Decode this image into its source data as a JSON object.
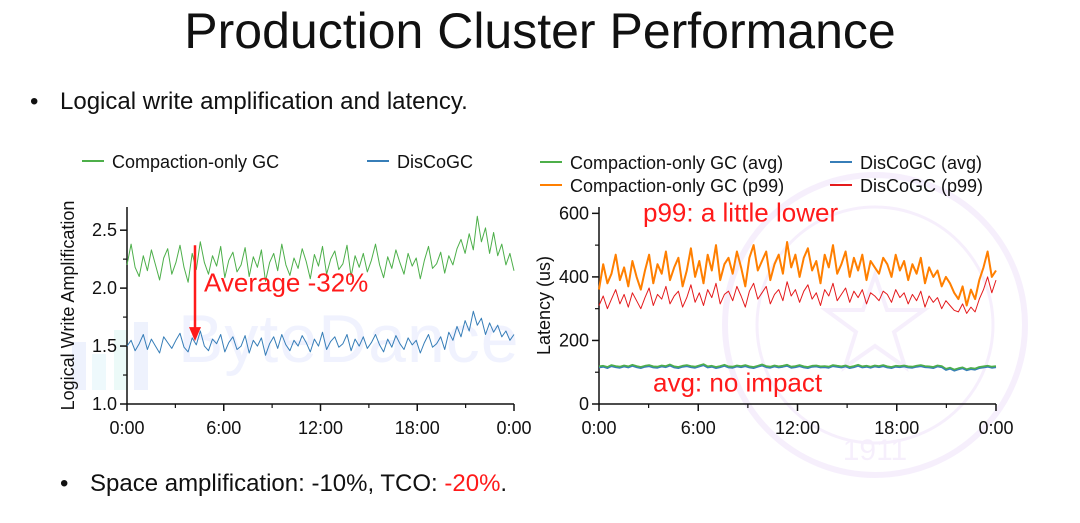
{
  "slide": {
    "title": "Production Cluster Performance",
    "bullet1": "Logical write amplification and latency.",
    "bullet2_prefix": "Space amplification: -10%, TCO: ",
    "bullet2_highlight": "-20%",
    "bullet2_suffix": "."
  },
  "watermark": {
    "logo_text": "ByteDance",
    "seal_text": "1911"
  },
  "colors": {
    "green": "#4daf4a",
    "blue": "#377eb8",
    "orange": "#ff7f00",
    "red": "#e41a1c",
    "annotation": "#ff1a1a"
  },
  "chart_data": [
    {
      "type": "line",
      "ylabel": "Logical Write Amplification",
      "xlabel": "",
      "ylim": [
        1.0,
        2.7
      ],
      "yticks": [
        "1.0",
        "1.5",
        "2.0",
        "2.5"
      ],
      "xticks": [
        "0:00",
        "6:00",
        "12:00",
        "18:00",
        "0:00"
      ],
      "x_range_hours": [
        0,
        24
      ],
      "legend_position": "top",
      "annotation": "Average -32%",
      "series": [
        {
          "name": "Compaction-only GC",
          "color": "#4daf4a",
          "values": [
            2.2,
            2.38,
            2.18,
            2.1,
            2.28,
            2.15,
            2.33,
            2.2,
            2.07,
            2.26,
            2.34,
            2.12,
            2.22,
            2.37,
            2.18,
            2.05,
            2.3,
            2.16,
            2.4,
            2.22,
            2.12,
            2.28,
            2.19,
            2.36,
            2.09,
            2.24,
            2.31,
            2.14,
            2.2,
            2.35,
            2.1,
            2.27,
            2.18,
            2.33,
            2.06,
            2.22,
            2.3,
            2.15,
            2.38,
            2.2,
            2.11,
            2.26,
            2.17,
            2.34,
            2.23,
            2.08,
            2.29,
            2.19,
            2.36,
            2.12,
            2.25,
            2.32,
            2.16,
            2.21,
            2.37,
            2.1,
            2.28,
            2.18,
            2.3,
            2.14,
            2.24,
            2.38,
            2.2,
            2.09,
            2.27,
            2.17,
            2.33,
            2.22,
            2.12,
            2.3,
            2.19,
            2.26,
            2.08,
            2.24,
            2.36,
            2.17,
            2.21,
            2.31,
            2.13,
            2.28,
            2.2,
            2.34,
            2.42,
            2.3,
            2.47,
            2.33,
            2.62,
            2.4,
            2.52,
            2.3,
            2.48,
            2.28,
            2.38,
            2.2,
            2.3,
            2.15
          ]
        },
        {
          "name": "DisCoGC",
          "color": "#377eb8",
          "values": [
            1.5,
            1.55,
            1.46,
            1.52,
            1.6,
            1.47,
            1.56,
            1.5,
            1.44,
            1.58,
            1.53,
            1.48,
            1.55,
            1.61,
            1.49,
            1.45,
            1.57,
            1.51,
            1.63,
            1.5,
            1.46,
            1.56,
            1.52,
            1.6,
            1.45,
            1.53,
            1.58,
            1.47,
            1.5,
            1.59,
            1.44,
            1.55,
            1.5,
            1.57,
            1.42,
            1.52,
            1.58,
            1.48,
            1.6,
            1.51,
            1.46,
            1.55,
            1.5,
            1.59,
            1.53,
            1.45,
            1.56,
            1.5,
            1.62,
            1.47,
            1.54,
            1.58,
            1.49,
            1.52,
            1.6,
            1.46,
            1.56,
            1.5,
            1.58,
            1.48,
            1.53,
            1.6,
            1.51,
            1.45,
            1.56,
            1.49,
            1.59,
            1.52,
            1.47,
            1.57,
            1.51,
            1.55,
            1.44,
            1.53,
            1.6,
            1.49,
            1.52,
            1.58,
            1.47,
            1.62,
            1.55,
            1.67,
            1.58,
            1.72,
            1.63,
            1.8,
            1.68,
            1.74,
            1.6,
            1.7,
            1.62,
            1.68,
            1.58,
            1.63,
            1.55,
            1.6
          ]
        }
      ]
    },
    {
      "type": "line",
      "ylabel": "Latency (us)",
      "xlabel": "",
      "ylim": [
        0,
        620
      ],
      "yticks": [
        "0",
        "200",
        "400",
        "600"
      ],
      "xticks": [
        "0:00",
        "6:00",
        "12:00",
        "18:00",
        "0:00"
      ],
      "x_range_hours": [
        0,
        24
      ],
      "legend_position": "top",
      "annotations": [
        "p99: a little lower",
        "avg: no impact"
      ],
      "series": [
        {
          "name": "Compaction-only GC (avg)",
          "color": "#4daf4a",
          "values": [
            118,
            120,
            116,
            122,
            119,
            117,
            121,
            118,
            123,
            119,
            116,
            120,
            122,
            118,
            117,
            121,
            119,
            124,
            118,
            116,
            120,
            122,
            119,
            117,
            121,
            125,
            118,
            120,
            116,
            119,
            123,
            118,
            117,
            121,
            119,
            122,
            118,
            116,
            120,
            124,
            119,
            117,
            121,
            118,
            120,
            123,
            117,
            119,
            122,
            118,
            116,
            120,
            121,
            118,
            119,
            117,
            122,
            120,
            118,
            121,
            116,
            119,
            123,
            118,
            120,
            117,
            121,
            119,
            122,
            118,
            116,
            120,
            119,
            121,
            118,
            117,
            120,
            122,
            119,
            118,
            116,
            121,
            119,
            110,
            114,
            108,
            112,
            115,
            109,
            113,
            111,
            116,
            118,
            120,
            117,
            119
          ]
        },
        {
          "name": "DisCoGC (avg)",
          "color": "#377eb8",
          "values": [
            114,
            116,
            112,
            118,
            115,
            113,
            117,
            114,
            119,
            115,
            112,
            116,
            118,
            114,
            113,
            117,
            115,
            120,
            114,
            112,
            116,
            118,
            115,
            113,
            117,
            121,
            114,
            116,
            112,
            115,
            119,
            114,
            113,
            117,
            115,
            118,
            114,
            112,
            116,
            120,
            115,
            113,
            117,
            114,
            116,
            119,
            113,
            115,
            118,
            114,
            112,
            116,
            117,
            114,
            115,
            113,
            118,
            116,
            114,
            117,
            112,
            115,
            119,
            114,
            116,
            113,
            117,
            115,
            118,
            114,
            112,
            116,
            115,
            117,
            114,
            113,
            116,
            118,
            115,
            114,
            112,
            117,
            115,
            106,
            110,
            104,
            108,
            111,
            105,
            109,
            107,
            112,
            114,
            116,
            113,
            115
          ]
        },
        {
          "name": "Compaction-only GC (p99)",
          "color": "#ff7f00",
          "values": [
            360,
            440,
            380,
            410,
            470,
            390,
            430,
            370,
            450,
            400,
            360,
            420,
            470,
            380,
            440,
            410,
            480,
            390,
            430,
            460,
            370,
            420,
            490,
            400,
            450,
            380,
            470,
            420,
            500,
            390,
            440,
            460,
            410,
            480,
            430,
            370,
            460,
            500,
            420,
            450,
            480,
            390,
            440,
            470,
            410,
            510,
            430,
            470,
            400,
            460,
            490,
            420,
            450,
            380,
            470,
            430,
            500,
            410,
            440,
            480,
            400,
            460,
            420,
            470,
            390,
            450,
            430,
            410,
            460,
            440,
            400,
            470,
            420,
            450,
            390,
            440,
            410,
            460,
            380,
            430,
            400,
            420,
            370,
            400,
            380,
            350,
            330,
            370,
            310,
            360,
            330,
            390,
            430,
            480,
            400,
            420
          ]
        },
        {
          "name": "DisCoGC (p99)",
          "color": "#e41a1c",
          "values": [
            310,
            340,
            300,
            330,
            360,
            315,
            345,
            305,
            350,
            325,
            300,
            335,
            365,
            310,
            345,
            330,
            370,
            315,
            340,
            355,
            305,
            335,
            375,
            320,
            350,
            310,
            360,
            335,
            380,
            315,
            345,
            355,
            325,
            370,
            340,
            305,
            355,
            380,
            330,
            350,
            370,
            315,
            345,
            360,
            325,
            385,
            340,
            360,
            320,
            355,
            375,
            330,
            350,
            310,
            360,
            340,
            380,
            325,
            345,
            365,
            320,
            355,
            335,
            360,
            315,
            350,
            340,
            325,
            355,
            345,
            320,
            360,
            335,
            350,
            315,
            345,
            325,
            355,
            305,
            340,
            320,
            335,
            300,
            325,
            310,
            295,
            290,
            315,
            285,
            305,
            290,
            330,
            360,
            400,
            350,
            390
          ]
        }
      ]
    }
  ]
}
